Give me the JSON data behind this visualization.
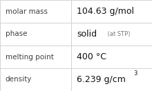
{
  "rows": [
    {
      "label": "molar mass",
      "value": "104.63 g/mol",
      "value_suffix": null,
      "value_super": null
    },
    {
      "label": "phase",
      "value": "solid",
      "value_suffix": " (at STP)",
      "value_super": null
    },
    {
      "label": "melting point",
      "value": "400 °C",
      "value_suffix": null,
      "value_super": null
    },
    {
      "label": "density",
      "value": "6.239 g/cm",
      "value_suffix": null,
      "value_super": "3"
    }
  ],
  "col_split": 0.47,
  "background_color": "#ffffff",
  "border_color": "#cccccc",
  "label_fontsize": 7.5,
  "value_fontsize": 9.0,
  "suffix_fontsize": 6.0,
  "super_fontsize": 6.0,
  "label_color": "#404040",
  "value_color": "#111111",
  "suffix_color": "#777777"
}
